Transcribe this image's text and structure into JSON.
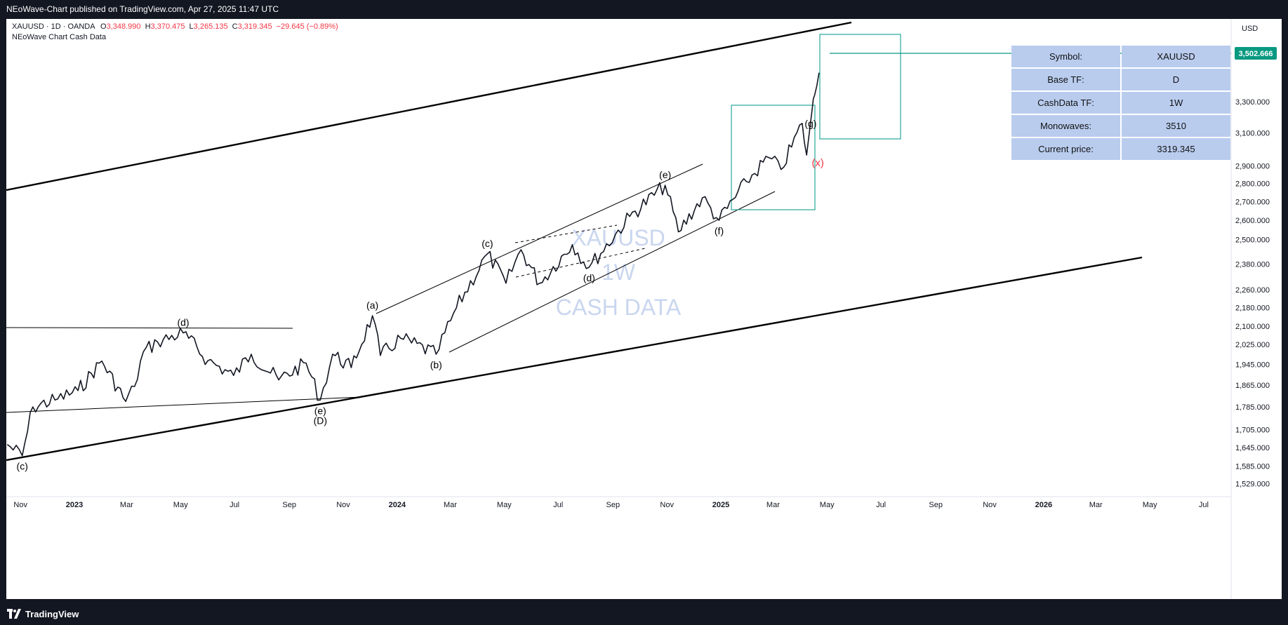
{
  "header": {
    "published_text": "NEoWave-Chart published on TradingView.com, Apr 27, 2025 11:47 UTC"
  },
  "legend": {
    "symbol_line": "XAUUSD · 1D · OANDA",
    "o_label": "O",
    "o_value": "3,348.990",
    "h_label": "H",
    "h_value": "3,370.475",
    "l_label": "L",
    "l_value": "3,265.135",
    "c_label": "C",
    "c_value": "3,319.345",
    "change": "−29.645 (−0.89%)",
    "indicator_name": "NEoWave Chart Cash Data"
  },
  "watermark": {
    "line1": "XAUUSD",
    "line2": "1W",
    "line3": "CASH DATA"
  },
  "info_table": [
    {
      "key": "Symbol:",
      "value": "XAUUSD"
    },
    {
      "key": "Base TF:",
      "value": "D"
    },
    {
      "key": "CashData TF:",
      "value": "1W"
    },
    {
      "key": "Monowaves:",
      "value": "3510"
    },
    {
      "key": "Current price:",
      "value": "3319.345"
    }
  ],
  "price_axis": {
    "currency": "USD",
    "highlight_label": "3,502.666"
  },
  "footer": {
    "brand": "TradingView"
  },
  "colors": {
    "price_line": "#131722",
    "box": "#26a69a",
    "highlight": "#089981",
    "red_label": "#f23645",
    "legend_red": "#f23645",
    "watermark": "#c9d6ef",
    "table_bg": "#b9ccee"
  },
  "chart_data": {
    "type": "line",
    "symbol": "XAUUSD",
    "interval": "1D",
    "axis_labels": {
      "x_ticks": [
        "Nov",
        "2023",
        "Mar",
        "May",
        "Jul",
        "Sep",
        "Nov",
        "2024",
        "Mar",
        "May",
        "Jul",
        "Sep",
        "Nov",
        "2025",
        "Mar",
        "May",
        "Jul",
        "Sep",
        "Nov",
        "2026",
        "Mar",
        "May",
        "Jul"
      ],
      "y_ticks": [
        "3,300.000",
        "3,100.000",
        "2,900.000",
        "2,800.000",
        "2,700.000",
        "2,600.000",
        "2,500.000",
        "2,380.000",
        "2,260.000",
        "2,180.000",
        "2,100.000",
        "2,025.000",
        "1,945.000",
        "1,865.000",
        "1,785.000",
        "1,705.000",
        "1,645.000",
        "1,585.000",
        "1,529.000"
      ]
    },
    "y_scale": "log",
    "y_range": [
      1490,
      3900
    ],
    "x_range": [
      "2022-10-16",
      "2026-08-01"
    ],
    "series": [
      {
        "values": [
          {
            "x": "2022-10-17",
            "y": 1655
          },
          {
            "x": "2022-11-03",
            "y": 1618
          },
          {
            "x": "2022-11-15",
            "y": 1785
          },
          {
            "x": "2022-12-10",
            "y": 1810
          },
          {
            "x": "2023-01-05",
            "y": 1845
          },
          {
            "x": "2023-02-01",
            "y": 1958
          },
          {
            "x": "2023-02-28",
            "y": 1805
          },
          {
            "x": "2023-03-10",
            "y": 1860
          },
          {
            "x": "2023-03-20",
            "y": 1995
          },
          {
            "x": "2023-04-05",
            "y": 2035
          },
          {
            "x": "2023-05-04",
            "y": 2072
          },
          {
            "x": "2023-06-01",
            "y": 1960
          },
          {
            "x": "2023-06-30",
            "y": 1902
          },
          {
            "x": "2023-07-20",
            "y": 1985
          },
          {
            "x": "2023-08-20",
            "y": 1885
          },
          {
            "x": "2023-09-20",
            "y": 1950
          },
          {
            "x": "2023-10-06",
            "y": 1810
          },
          {
            "x": "2023-10-20",
            "y": 1985
          },
          {
            "x": "2023-11-10",
            "y": 1932
          },
          {
            "x": "2023-12-04",
            "y": 2145
          },
          {
            "x": "2023-12-13",
            "y": 1980
          },
          {
            "x": "2024-01-05",
            "y": 2050
          },
          {
            "x": "2024-02-14",
            "y": 1985
          },
          {
            "x": "2024-03-08",
            "y": 2180
          },
          {
            "x": "2024-04-12",
            "y": 2430
          },
          {
            "x": "2024-05-03",
            "y": 2290
          },
          {
            "x": "2024-05-20",
            "y": 2450
          },
          {
            "x": "2024-06-10",
            "y": 2290
          },
          {
            "x": "2024-07-17",
            "y": 2475
          },
          {
            "x": "2024-08-05",
            "y": 2365
          },
          {
            "x": "2024-09-20",
            "y": 2620
          },
          {
            "x": "2024-10-30",
            "y": 2790
          },
          {
            "x": "2024-11-14",
            "y": 2540
          },
          {
            "x": "2024-12-11",
            "y": 2720
          },
          {
            "x": "2024-12-30",
            "y": 2600
          },
          {
            "x": "2025-01-30",
            "y": 2810
          },
          {
            "x": "2025-02-24",
            "y": 2950
          },
          {
            "x": "2025-03-10",
            "y": 2880
          },
          {
            "x": "2025-04-03",
            "y": 3160
          },
          {
            "x": "2025-04-08",
            "y": 2965
          },
          {
            "x": "2025-04-14",
            "y": 3240
          },
          {
            "x": "2025-04-17",
            "y": 3345
          },
          {
            "x": "2025-04-22",
            "y": 3500
          }
        ]
      }
    ],
    "annotations": [
      {
        "text": "(c)",
        "x": "2022-11-03",
        "y": 1618,
        "pos": "below"
      },
      {
        "text": "(d)",
        "x": "2023-05-04",
        "y": 2072,
        "pos": "above"
      },
      {
        "text": "(e)",
        "x": "2023-10-06",
        "y": 1810,
        "pos": "below"
      },
      {
        "text": "(D)",
        "x": "2023-10-06",
        "y": 1810,
        "pos": "below2"
      },
      {
        "text": "(a)",
        "x": "2023-12-04",
        "y": 2145,
        "pos": "above"
      },
      {
        "text": "(b)",
        "x": "2024-02-14",
        "y": 1985,
        "pos": "below"
      },
      {
        "text": "(c)",
        "x": "2024-04-12",
        "y": 2430,
        "pos": "above"
      },
      {
        "text": "(d)",
        "x": "2024-08-05",
        "y": 2365,
        "pos": "below"
      },
      {
        "text": "(e)",
        "x": "2024-10-30",
        "y": 2790,
        "pos": "above"
      },
      {
        "text": "(f)",
        "x": "2024-12-30",
        "y": 2600,
        "pos": "below"
      },
      {
        "text": "(g)",
        "x": "2025-04-03",
        "y": 3160,
        "pos": "right"
      },
      {
        "text": "(x)",
        "x": "2025-04-08",
        "y": 2965,
        "pos": "belowred"
      }
    ]
  }
}
